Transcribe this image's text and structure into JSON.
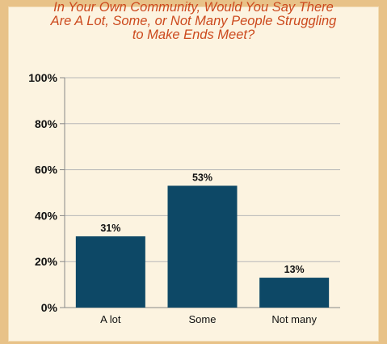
{
  "chart_data": {
    "type": "bar",
    "title": "In Your Own Community, Would You Say There\nAre A Lot, Some, or Not Many People Struggling\nto Make Ends Meet?",
    "categories": [
      "A lot",
      "Some",
      "Not many"
    ],
    "values": [
      31,
      53,
      13
    ],
    "data_labels": [
      "31%",
      "53%",
      "13%"
    ],
    "ylim": [
      0,
      100
    ],
    "yticks": [
      0,
      20,
      40,
      60,
      80,
      100
    ],
    "ytick_labels": [
      "0%",
      "20%",
      "40%",
      "60%",
      "80%",
      "100%"
    ],
    "xlabel": "",
    "ylabel": "",
    "grid": true,
    "bar_color": "#0d4866",
    "title_color": "#cc4a1e"
  }
}
